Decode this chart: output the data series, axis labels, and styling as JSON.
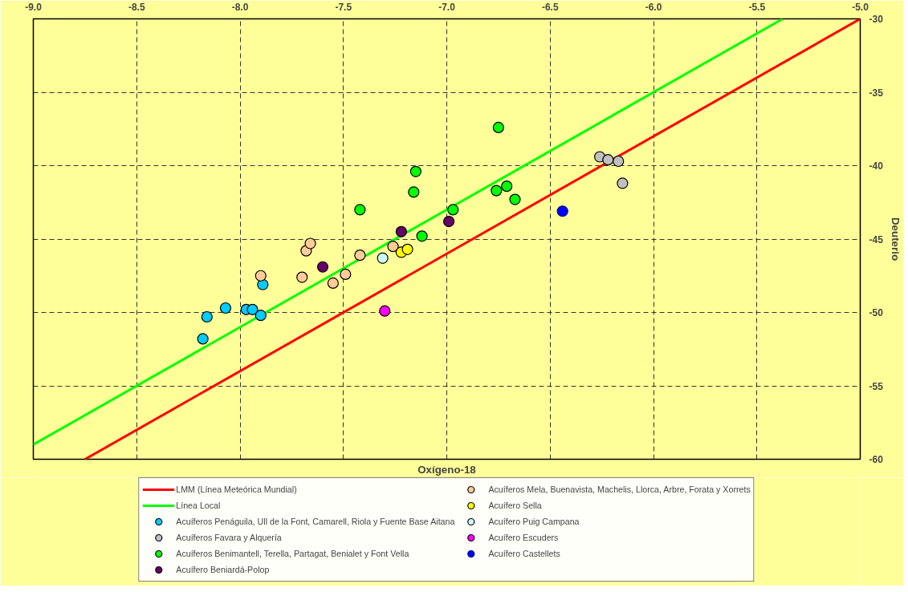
{
  "chart_data": {
    "type": "scatter",
    "xlabel": "Oxígeno-18",
    "ylabel": "Deuterio",
    "xlim": [
      -9,
      -5
    ],
    "ylim": [
      -60,
      -30
    ],
    "xticks": [
      {
        "value": -9,
        "label": "-9.0"
      },
      {
        "value": -8.5,
        "label": "-8.5"
      },
      {
        "value": -8,
        "label": "-8.0"
      },
      {
        "value": -7.5,
        "label": "-7.5"
      },
      {
        "value": -7,
        "label": "-7.0"
      },
      {
        "value": -6.5,
        "label": "-6.5"
      },
      {
        "value": -6,
        "label": "-6.0"
      },
      {
        "value": -5.5,
        "label": "-5.5"
      },
      {
        "value": -5,
        "label": "-5.0"
      }
    ],
    "yticks": [
      -30,
      -35,
      -40,
      -45,
      -50,
      -55,
      -60
    ],
    "grid": true,
    "legend": "bottom",
    "marker": "circle",
    "series": [
      {
        "type": "line",
        "name": "LMM (Línea Meteórica Mundial)",
        "color": "#ff0000",
        "marker": "none",
        "x": [
          -8.75,
          -5
        ],
        "values": [
          -60,
          -30
        ]
      },
      {
        "type": "line",
        "name": "Línea Local",
        "color": "#00ff00",
        "marker": "none",
        "x": [
          -9,
          -5.375
        ],
        "values": [
          -59,
          -30
        ]
      },
      {
        "name": "Acuíferos Penáguila, Ull de la Font, Camarell, Riola y Fuente Base Aitana",
        "color": "#00ccff",
        "x": [
          -8.18,
          -8.16,
          -8.07,
          -7.97,
          -7.94,
          -7.9,
          -7.89
        ],
        "values": [
          -51.8,
          -50.3,
          -49.7,
          -49.8,
          -49.8,
          -50.2,
          -48.1
        ]
      },
      {
        "name": "Acuíferos Favara y Alquería",
        "color": "#c0c0c0",
        "x": [
          -6.26,
          -6.22,
          -6.17,
          -6.15
        ],
        "values": [
          -39.4,
          -39.6,
          -39.7,
          -41.2
        ]
      },
      {
        "name": "Acuíferos Benimantell, Terella, Partagat, Benialet y Font Vella",
        "color": "#00ff00",
        "x": [
          -7.42,
          -7.15,
          -7.16,
          -7.12,
          -6.97,
          -6.75,
          -6.76,
          -6.71,
          -6.67
        ],
        "values": [
          -43.0,
          -40.4,
          -41.8,
          -44.8,
          -43.0,
          -37.4,
          -41.7,
          -41.4,
          -42.3
        ]
      },
      {
        "name": "Acuífero Beniardá-Polop",
        "color": "#660066",
        "x": [
          -7.6,
          -7.22,
          -6.99
        ],
        "values": [
          -46.9,
          -44.5,
          -43.8
        ]
      },
      {
        "name": "Acuíferos Mela, Buenavista, Machelis, Llorca, Arbre, Forata y Xorrets",
        "color": "#ffcc99",
        "x": [
          -7.9,
          -7.7,
          -7.68,
          -7.66,
          -7.55,
          -7.49,
          -7.42,
          -7.26
        ],
        "values": [
          -47.5,
          -47.6,
          -45.8,
          -45.3,
          -48.0,
          -47.4,
          -46.1,
          -45.5
        ]
      },
      {
        "name": "Acuífero Sella",
        "color": "#ffff00",
        "x": [
          -7.22,
          -7.19
        ],
        "values": [
          -45.9,
          -45.7
        ]
      },
      {
        "name": "Acuífero Puig Campana",
        "color": "#ccffff",
        "x": [
          -7.31
        ],
        "values": [
          -46.3
        ]
      },
      {
        "name": "Acuífero Escuders",
        "color": "#ff00ff",
        "x": [
          -7.3
        ],
        "values": [
          -49.9
        ]
      },
      {
        "name": "Acuífero Castellets",
        "color": "#0000ff",
        "x": [
          -6.44
        ],
        "values": [
          -43.1
        ]
      }
    ]
  }
}
